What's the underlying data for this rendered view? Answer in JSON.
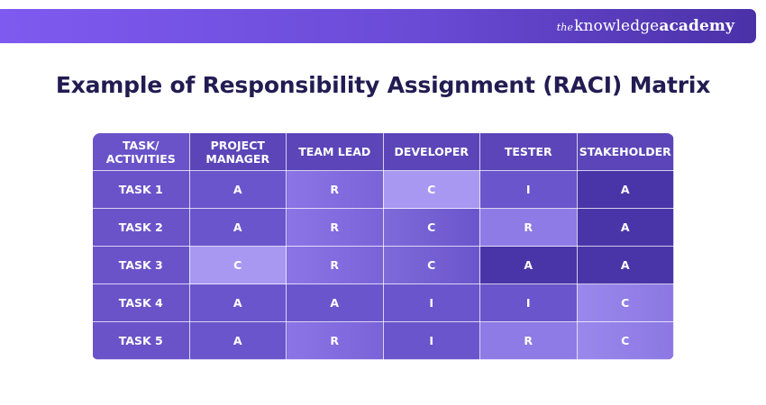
{
  "brand": {
    "prefix": "the",
    "name": "knowledge",
    "name_strong": "academy"
  },
  "title": "Example of Responsibility Assignment (RACI) Matrix",
  "matrix": {
    "headers": [
      "TASK/ ACTIVITIES",
      "PROJECT MANAGER",
      "TEAM LEAD",
      "DEVELOPER",
      "TESTER",
      "STAKEHOLDER"
    ],
    "rows": [
      {
        "task": "TASK 1",
        "values": [
          "A",
          "R",
          "C",
          "I",
          "A"
        ]
      },
      {
        "task": "TASK 2",
        "values": [
          "A",
          "R",
          "C",
          "R",
          "A"
        ]
      },
      {
        "task": "TASK 3",
        "values": [
          "C",
          "R",
          "C",
          "A",
          "A"
        ]
      },
      {
        "task": "TASK 4",
        "values": [
          "A",
          "A",
          "I",
          "I",
          "C"
        ]
      },
      {
        "task": "TASK 5",
        "values": [
          "A",
          "R",
          "I",
          "R",
          "C"
        ]
      }
    ]
  }
}
